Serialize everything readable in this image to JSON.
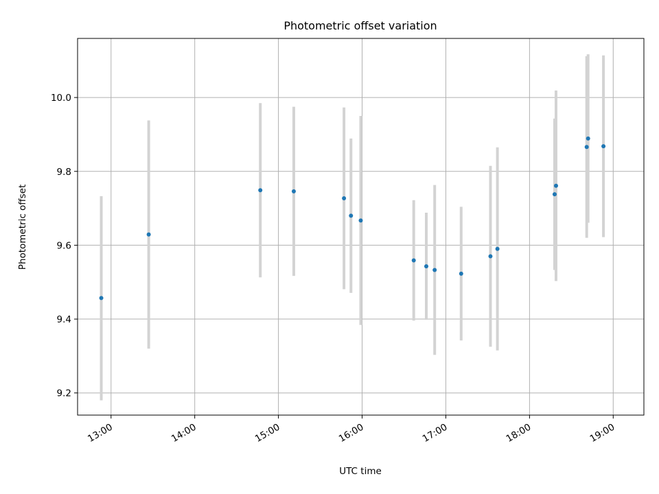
{
  "chart_data": {
    "type": "scatter",
    "title": "Photometric offset variation",
    "xlabel": "UTC time",
    "ylabel": "Photometric offset",
    "x_range": [
      "12:36",
      "19:22"
    ],
    "ylim": [
      9.14,
      10.16
    ],
    "x_ticks": [
      "13:00",
      "14:00",
      "15:00",
      "16:00",
      "17:00",
      "18:00",
      "19:00"
    ],
    "y_ticks": [
      "9.2",
      "9.4",
      "9.6",
      "9.8",
      "10.0"
    ],
    "grid": true,
    "legend": "none",
    "colors": {
      "point": "#1f77b4",
      "errorbar": "#d3d3d3",
      "grid": "#b0b0b0"
    },
    "points": [
      {
        "time": "12:53",
        "value": 9.457,
        "low": 9.18,
        "high": 9.733
      },
      {
        "time": "13:27",
        "value": 9.629,
        "low": 9.32,
        "high": 9.938
      },
      {
        "time": "14:47",
        "value": 9.749,
        "low": 9.513,
        "high": 9.985
      },
      {
        "time": "15:11",
        "value": 9.746,
        "low": 9.517,
        "high": 9.975
      },
      {
        "time": "15:47",
        "value": 9.727,
        "low": 9.481,
        "high": 9.973
      },
      {
        "time": "15:52",
        "value": 9.68,
        "low": 9.471,
        "high": 9.889
      },
      {
        "time": "15:59",
        "value": 9.667,
        "low": 9.384,
        "high": 9.95
      },
      {
        "time": "16:37",
        "value": 9.559,
        "low": 9.396,
        "high": 9.722
      },
      {
        "time": "16:46",
        "value": 9.543,
        "low": 9.398,
        "high": 9.688
      },
      {
        "time": "16:52",
        "value": 9.533,
        "low": 9.303,
        "high": 9.763
      },
      {
        "time": "17:11",
        "value": 9.523,
        "low": 9.342,
        "high": 9.704
      },
      {
        "time": "17:32",
        "value": 9.57,
        "low": 9.325,
        "high": 9.815
      },
      {
        "time": "17:37",
        "value": 9.59,
        "low": 9.315,
        "high": 9.865
      },
      {
        "time": "18:18",
        "value": 9.738,
        "low": 9.533,
        "high": 9.943
      },
      {
        "time": "18:19",
        "value": 9.761,
        "low": 9.503,
        "high": 10.019
      },
      {
        "time": "18:41",
        "value": 9.866,
        "low": 9.62,
        "high": 10.112
      },
      {
        "time": "18:42",
        "value": 9.889,
        "low": 9.661,
        "high": 10.117
      },
      {
        "time": "18:53",
        "value": 9.868,
        "low": 9.622,
        "high": 10.114
      }
    ]
  }
}
